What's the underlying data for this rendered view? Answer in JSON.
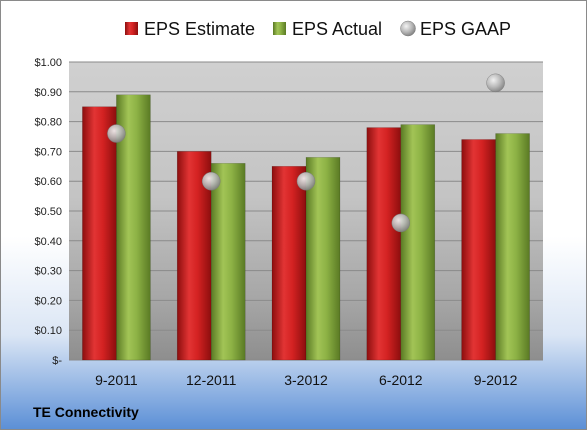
{
  "footer": {
    "company": "TE Connectivity"
  },
  "chart_data": {
    "type": "bar",
    "categories": [
      "9-2011",
      "12-2011",
      "3-2012",
      "6-2012",
      "9-2012"
    ],
    "series": [
      {
        "name": "EPS Estimate",
        "kind": "bar",
        "color": "#cc1f1f",
        "values": [
          0.85,
          0.7,
          0.65,
          0.78,
          0.74
        ]
      },
      {
        "name": "EPS Actual",
        "kind": "bar",
        "color": "#86ad3c",
        "values": [
          0.89,
          0.66,
          0.68,
          0.79,
          0.76
        ]
      },
      {
        "name": "EPS GAAP",
        "kind": "scatter",
        "color": "#a9a9a9",
        "values": [
          0.76,
          0.6,
          0.6,
          0.46,
          0.93
        ]
      }
    ],
    "ylim": [
      0,
      1.0
    ],
    "yticks": [
      0,
      0.1,
      0.2,
      0.3,
      0.4,
      0.5,
      0.6,
      0.7,
      0.8,
      0.9,
      1.0
    ],
    "ytick_labels": [
      "$-",
      "$0.10",
      "$0.20",
      "$0.30",
      "$0.40",
      "$0.50",
      "$0.60",
      "$0.70",
      "$0.80",
      "$0.90",
      "$1.00"
    ],
    "grid": true,
    "legend_position": "top"
  }
}
